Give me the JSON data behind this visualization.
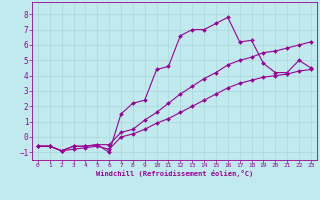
{
  "xlabel": "Windchill (Refroidissement éolien,°C)",
  "xlim": [
    -0.5,
    23.5
  ],
  "ylim": [
    -1.5,
    8.8
  ],
  "xticks": [
    0,
    1,
    2,
    3,
    4,
    5,
    6,
    7,
    8,
    9,
    10,
    11,
    12,
    13,
    14,
    15,
    16,
    17,
    18,
    19,
    20,
    21,
    22,
    23
  ],
  "yticks": [
    -1,
    0,
    1,
    2,
    3,
    4,
    5,
    6,
    7,
    8
  ],
  "bg_color": "#c0eaed",
  "line_color": "#990099",
  "grid_color": "#a8d8db",
  "series1_x": [
    0,
    1,
    2,
    3,
    4,
    5,
    6,
    7,
    8,
    9,
    10,
    11,
    12,
    13,
    14,
    15,
    16,
    17,
    18,
    19,
    20,
    21,
    22,
    23
  ],
  "series1_y": [
    -0.6,
    -0.6,
    -0.9,
    -0.6,
    -0.6,
    -0.5,
    -1.0,
    1.5,
    2.2,
    2.4,
    4.4,
    4.6,
    6.6,
    7.0,
    7.0,
    7.4,
    7.8,
    6.2,
    6.3,
    4.8,
    4.2,
    4.2,
    5.0,
    4.5
  ],
  "series2_x": [
    0,
    1,
    2,
    3,
    4,
    5,
    6,
    7,
    8,
    9,
    10,
    11,
    12,
    13,
    14,
    15,
    16,
    17,
    18,
    19,
    20,
    21,
    22,
    23
  ],
  "series2_y": [
    -0.6,
    -0.6,
    -0.9,
    -0.6,
    -0.6,
    -0.5,
    -0.5,
    0.3,
    0.5,
    1.1,
    1.6,
    2.2,
    2.8,
    3.3,
    3.8,
    4.2,
    4.7,
    5.0,
    5.2,
    5.5,
    5.6,
    5.8,
    6.0,
    6.2
  ],
  "series3_x": [
    0,
    1,
    2,
    3,
    4,
    5,
    6,
    7,
    8,
    9,
    10,
    11,
    12,
    13,
    14,
    15,
    16,
    17,
    18,
    19,
    20,
    21,
    22,
    23
  ],
  "series3_y": [
    -0.6,
    -0.6,
    -0.9,
    -0.8,
    -0.7,
    -0.6,
    -0.8,
    0.0,
    0.2,
    0.5,
    0.9,
    1.2,
    1.6,
    2.0,
    2.4,
    2.8,
    3.2,
    3.5,
    3.7,
    3.9,
    4.0,
    4.1,
    4.3,
    4.4
  ]
}
